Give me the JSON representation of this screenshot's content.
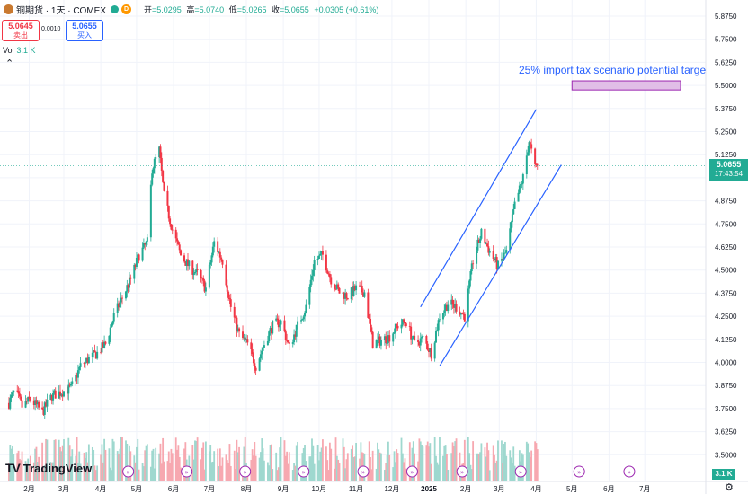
{
  "header": {
    "symbol": "铜期货 · 1天 · COMEX",
    "status_letter": "D",
    "ohlc": [
      {
        "label": "开",
        "value": "=5.0295"
      },
      {
        "label": "高",
        "value": "=5.0740"
      },
      {
        "label": "低",
        "value": "=5.0265"
      },
      {
        "label": "收",
        "value": "=5.0655"
      }
    ],
    "change": "+0.0305 (+0.61%)"
  },
  "trade": {
    "sell_price": "5.0645",
    "sell_label": "卖出",
    "spread": "0.0010",
    "buy_price": "5.0655",
    "buy_label": "买入"
  },
  "volume": {
    "label": "Vol",
    "value": "3.1 K",
    "badge": "3.1 K"
  },
  "brand": "TradingView",
  "annotation": "25% import tax scenario potential targe",
  "last_price": {
    "value": "5.0655",
    "countdown": "17:43:54"
  },
  "colors": {
    "up": "#22ab94",
    "down": "#f23645",
    "channel": "#2962ff",
    "target_box": "#e1bee7",
    "target_border": "#9c27b0"
  },
  "chart_data": {
    "type": "candlestick",
    "title": "铜期货 · 1天 · COMEX",
    "x_ticks": [
      "2月",
      "3月",
      "4月",
      "5月",
      "6月",
      "7月",
      "8月",
      "9月",
      "10月",
      "11月",
      "12月",
      "2025",
      "2月",
      "3月",
      "4月",
      "5月",
      "6月",
      "7月"
    ],
    "y_ticks": [
      "5.8750",
      "5.7500",
      "5.6250",
      "5.5000",
      "5.3750",
      "5.2500",
      "5.1250",
      "5.0000",
      "4.8750",
      "4.7500",
      "4.6250",
      "4.5000",
      "4.3750",
      "4.2500",
      "4.1250",
      "4.0000",
      "3.8750",
      "3.7500",
      "3.6250",
      "3.5000"
    ],
    "ylim": [
      3.45,
      5.93
    ],
    "close_path": [
      [
        "2024-01-15",
        3.78
      ],
      [
        "2024-01-20",
        3.85
      ],
      [
        "2024-01-26",
        3.76
      ],
      [
        "2024-02-02",
        3.8
      ],
      [
        "2024-02-12",
        3.73
      ],
      [
        "2024-02-20",
        3.82
      ],
      [
        "2024-02-28",
        3.84
      ],
      [
        "2024-03-07",
        3.86
      ],
      [
        "2024-03-15",
        3.98
      ],
      [
        "2024-03-22",
        4.02
      ],
      [
        "2024-03-29",
        4.05
      ],
      [
        "2024-04-05",
        4.1
      ],
      [
        "2024-04-12",
        4.25
      ],
      [
        "2024-04-19",
        4.35
      ],
      [
        "2024-04-26",
        4.45
      ],
      [
        "2024-05-03",
        4.58
      ],
      [
        "2024-05-10",
        4.65
      ],
      [
        "2024-05-14",
        5.05
      ],
      [
        "2024-05-20",
        5.15
      ],
      [
        "2024-05-24",
        4.9
      ],
      [
        "2024-05-31",
        4.72
      ],
      [
        "2024-06-07",
        4.58
      ],
      [
        "2024-06-14",
        4.52
      ],
      [
        "2024-06-21",
        4.48
      ],
      [
        "2024-06-28",
        4.4
      ],
      [
        "2024-07-05",
        4.65
      ],
      [
        "2024-07-12",
        4.55
      ],
      [
        "2024-07-19",
        4.3
      ],
      [
        "2024-07-26",
        4.15
      ],
      [
        "2024-08-02",
        4.1
      ],
      [
        "2024-08-09",
        3.98
      ],
      [
        "2024-08-16",
        4.1
      ],
      [
        "2024-08-23",
        4.2
      ],
      [
        "2024-08-30",
        4.22
      ],
      [
        "2024-09-06",
        4.08
      ],
      [
        "2024-09-13",
        4.2
      ],
      [
        "2024-09-20",
        4.3
      ],
      [
        "2024-09-27",
        4.55
      ],
      [
        "2024-10-04",
        4.58
      ],
      [
        "2024-10-11",
        4.45
      ],
      [
        "2024-10-18",
        4.38
      ],
      [
        "2024-10-25",
        4.36
      ],
      [
        "2024-11-01",
        4.4
      ],
      [
        "2024-11-08",
        4.38
      ],
      [
        "2024-11-15",
        4.1
      ],
      [
        "2024-11-22",
        4.12
      ],
      [
        "2024-11-29",
        4.14
      ],
      [
        "2024-12-06",
        4.2
      ],
      [
        "2024-12-13",
        4.22
      ],
      [
        "2024-12-20",
        4.1
      ],
      [
        "2024-12-27",
        4.13
      ],
      [
        "2025-01-03",
        4.05
      ],
      [
        "2025-01-10",
        4.25
      ],
      [
        "2025-01-17",
        4.32
      ],
      [
        "2025-01-24",
        4.3
      ],
      [
        "2025-01-31",
        4.25
      ],
      [
        "2025-02-07",
        4.55
      ],
      [
        "2025-02-14",
        4.7
      ],
      [
        "2025-02-21",
        4.6
      ],
      [
        "2025-02-28",
        4.52
      ],
      [
        "2025-03-07",
        4.6
      ],
      [
        "2025-03-14",
        4.85
      ],
      [
        "2025-03-21",
        5.0
      ],
      [
        "2025-03-26",
        5.2
      ],
      [
        "2025-03-31",
        5.05
      ],
      [
        "2025-04-02",
        5.0655
      ]
    ],
    "annotations": [
      {
        "type": "rectangle",
        "label": "25% import tax scenario potential targe",
        "x_range": [
          "2025-05-01",
          "2025-07-31"
        ],
        "y_range": [
          5.49,
          5.51
        ]
      },
      {
        "type": "channel_line",
        "from": [
          "2024-12-25",
          4.3
        ],
        "to": [
          "2025-04-01",
          5.37
        ]
      },
      {
        "type": "channel_line",
        "from": [
          "2025-01-10",
          3.98
        ],
        "to": [
          "2025-04-22",
          5.07
        ]
      }
    ],
    "last_price": 5.0655
  }
}
